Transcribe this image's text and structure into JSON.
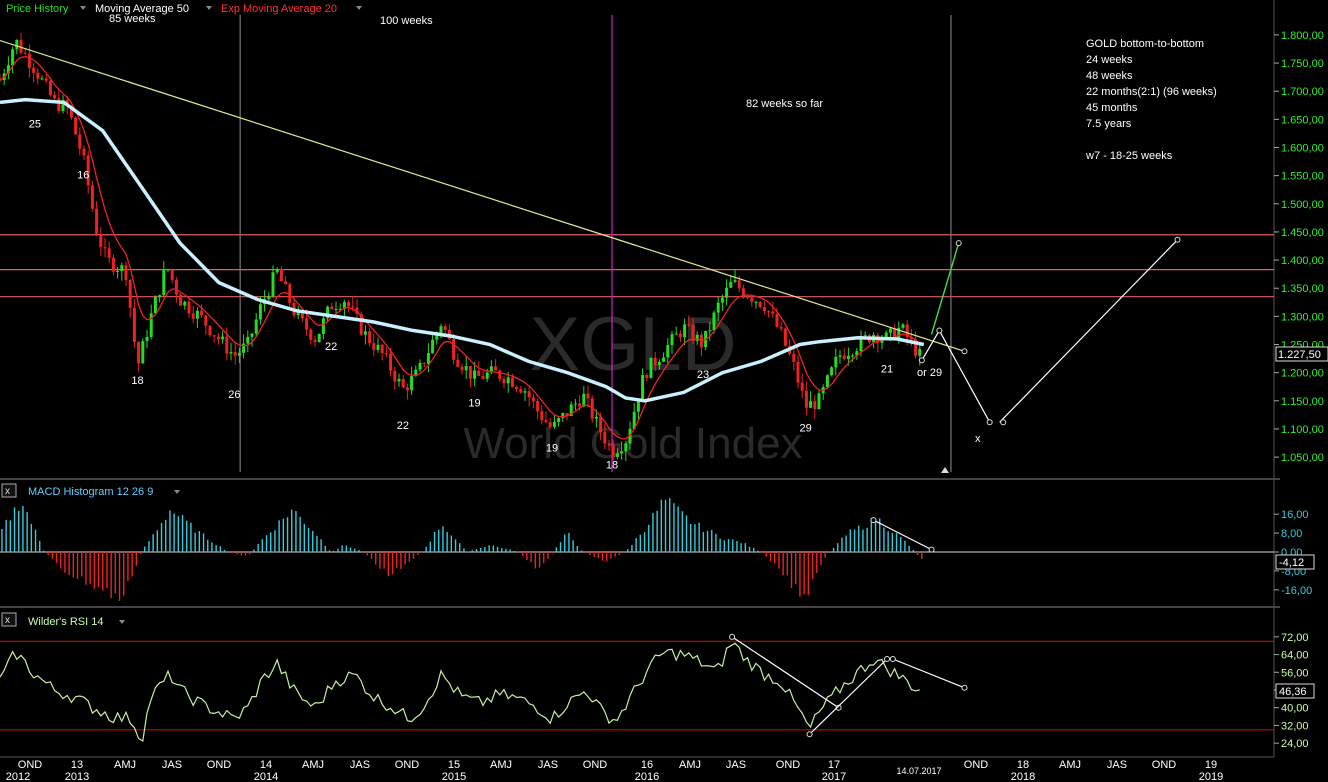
{
  "main": {
    "legend": [
      {
        "label": "Price History",
        "color": "#22dd22"
      },
      {
        "label": "Moving Average 50",
        "color": "#ffffff"
      },
      {
        "label": "Exp Moving Average 20",
        "color": "#ff2a2a"
      }
    ],
    "watermark_symbol": "XGLD",
    "watermark_name": "World Gold Index",
    "annotations": {
      "weeks_85": "85 weeks",
      "weeks_100": "100 weeks",
      "so_far": "82 weeks so far",
      "x_mark": "x",
      "or29": "or 29",
      "date": "14.07.2017"
    },
    "cycle_notes": [
      "GOLD bottom-to-bottom",
      "24 weeks",
      "48 weeks",
      "22 months(2:1) (96 weeks)",
      "45 months",
      "7.5 years",
      "",
      "w7 - 18-25 weeks"
    ],
    "cycle_labels": [
      "25",
      "16",
      "18",
      "26",
      "22",
      "22",
      "19",
      "19",
      "18",
      "23",
      "29",
      "21"
    ],
    "current_price": "1.227,50"
  },
  "macd": {
    "title": "MACD Histogram 12 26 9",
    "current": "-4,12",
    "close_icon": "x"
  },
  "rsi": {
    "title": "Wilder's RSI 14",
    "current": "46,36",
    "close_icon": "x"
  },
  "x_axis": {
    "months": [
      "OND",
      "13",
      "AMJ",
      "JAS",
      "OND",
      "14",
      "AMJ",
      "JAS",
      "OND",
      "15",
      "AMJ",
      "JAS",
      "OND",
      "16",
      "AMJ",
      "JAS",
      "OND",
      "17",
      "",
      "OND",
      "18",
      "AMJ",
      "JAS",
      "OND",
      "19"
    ],
    "years": [
      "2012",
      "2013",
      "2014",
      "2015",
      "2016",
      "2017",
      "2018",
      "2019"
    ]
  },
  "chart_data": [
    {
      "type": "candlestick",
      "title": "World Gold Index",
      "symbol": "XGLD",
      "timeframe": "weekly",
      "x_range": [
        "2012-10",
        "2019-03"
      ],
      "ylim": [
        1020,
        1830
      ],
      "y_ticks": [
        "1.050,00",
        "1.100,00",
        "1.150,00",
        "1.200,00",
        "1.250,00",
        "1.300,00",
        "1.350,00",
        "1.400,00",
        "1.450,00",
        "1.500,00",
        "1.550,00",
        "1.600,00",
        "1.650,00",
        "1.700,00",
        "1.750,00",
        "1.800,00"
      ],
      "last_close": 1227.5,
      "price_path": [
        [
          2012.77,
          1720
        ],
        [
          2012.85,
          1790
        ],
        [
          2012.95,
          1740
        ],
        [
          2013.05,
          1680
        ],
        [
          2013.12,
          1670
        ],
        [
          2013.2,
          1580
        ],
        [
          2013.27,
          1450
        ],
        [
          2013.32,
          1400
        ],
        [
          2013.42,
          1380
        ],
        [
          2013.48,
          1210
        ],
        [
          2013.55,
          1300
        ],
        [
          2013.63,
          1390
        ],
        [
          2013.7,
          1330
        ],
        [
          2013.8,
          1300
        ],
        [
          2013.9,
          1260
        ],
        [
          2013.98,
          1230
        ],
        [
          2014.05,
          1250
        ],
        [
          2014.12,
          1320
        ],
        [
          2014.2,
          1380
        ],
        [
          2014.3,
          1300
        ],
        [
          2014.4,
          1260
        ],
        [
          2014.48,
          1320
        ],
        [
          2014.55,
          1330
        ],
        [
          2014.65,
          1270
        ],
        [
          2014.75,
          1230
        ],
        [
          2014.85,
          1170
        ],
        [
          2014.93,
          1200
        ],
        [
          2015.05,
          1290
        ],
        [
          2015.12,
          1230
        ],
        [
          2015.22,
          1190
        ],
        [
          2015.32,
          1200
        ],
        [
          2015.4,
          1190
        ],
        [
          2015.48,
          1170
        ],
        [
          2015.55,
          1130
        ],
        [
          2015.62,
          1100
        ],
        [
          2015.7,
          1130
        ],
        [
          2015.78,
          1160
        ],
        [
          2015.85,
          1110
        ],
        [
          2015.93,
          1060
        ],
        [
          2016.0,
          1080
        ],
        [
          2016.1,
          1200
        ],
        [
          2016.2,
          1240
        ],
        [
          2016.3,
          1280
        ],
        [
          2016.4,
          1250
        ],
        [
          2016.48,
          1320
        ],
        [
          2016.55,
          1360
        ],
        [
          2016.63,
          1340
        ],
        [
          2016.72,
          1320
        ],
        [
          2016.8,
          1270
        ],
        [
          2016.87,
          1210
        ],
        [
          2016.93,
          1140
        ],
        [
          2017.0,
          1150
        ],
        [
          2017.1,
          1230
        ],
        [
          2017.2,
          1250
        ],
        [
          2017.28,
          1270
        ],
        [
          2017.35,
          1260
        ],
        [
          2017.42,
          1280
        ],
        [
          2017.48,
          1250
        ],
        [
          2017.54,
          1220
        ]
      ],
      "sma50_path": [
        [
          2012.77,
          1680
        ],
        [
          2012.9,
          1685
        ],
        [
          2013.1,
          1680
        ],
        [
          2013.3,
          1630
        ],
        [
          2013.5,
          1530
        ],
        [
          2013.7,
          1430
        ],
        [
          2013.9,
          1360
        ],
        [
          2014.1,
          1330
        ],
        [
          2014.3,
          1310
        ],
        [
          2014.5,
          1300
        ],
        [
          2014.7,
          1290
        ],
        [
          2014.9,
          1275
        ],
        [
          2015.1,
          1265
        ],
        [
          2015.3,
          1250
        ],
        [
          2015.5,
          1220
        ],
        [
          2015.7,
          1200
        ],
        [
          2015.9,
          1175
        ],
        [
          2016.0,
          1155
        ],
        [
          2016.1,
          1150
        ],
        [
          2016.3,
          1165
        ],
        [
          2016.5,
          1200
        ],
        [
          2016.7,
          1220
        ],
        [
          2016.9,
          1250
        ],
        [
          2017.0,
          1255
        ],
        [
          2017.2,
          1262
        ],
        [
          2017.4,
          1260
        ],
        [
          2017.54,
          1250
        ]
      ],
      "horizontal_levels": [
        1445,
        1383,
        1335
      ],
      "cycle_lows": [
        {
          "label": "25",
          "x": 2012.95,
          "y": 1660
        },
        {
          "label": "16",
          "x": 2013.2,
          "y": 1570
        },
        {
          "label": "18",
          "x": 2013.48,
          "y": 1205
        },
        {
          "label": "26",
          "x": 2013.98,
          "y": 1180
        },
        {
          "label": "22",
          "x": 2014.48,
          "y": 1265
        },
        {
          "label": "22",
          "x": 2014.85,
          "y": 1125
        },
        {
          "label": "19",
          "x": 2015.22,
          "y": 1165
        },
        {
          "label": "19",
          "x": 2015.62,
          "y": 1085
        },
        {
          "label": "18",
          "x": 2015.93,
          "y": 1055
        },
        {
          "label": "23",
          "x": 2016.4,
          "y": 1215
        },
        {
          "label": "29",
          "x": 2016.93,
          "y": 1120
        },
        {
          "label": "21",
          "x": 2017.35,
          "y": 1225
        }
      ]
    },
    {
      "type": "bar",
      "title": "MACD Histogram 12 26 9",
      "ylim": [
        -22,
        22
      ],
      "y_ticks": [
        "16,00",
        "8,00",
        "0,00",
        "-8,00",
        "-16,00"
      ],
      "last_value": -4.12,
      "path": [
        [
          2012.77,
          8
        ],
        [
          2012.88,
          22
        ],
        [
          2013.0,
          0
        ],
        [
          2013.1,
          -8
        ],
        [
          2013.25,
          -14
        ],
        [
          2013.4,
          -20
        ],
        [
          2013.5,
          0
        ],
        [
          2013.65,
          18
        ],
        [
          2013.8,
          8
        ],
        [
          2013.95,
          0
        ],
        [
          2014.05,
          -2
        ],
        [
          2014.12,
          5
        ],
        [
          2014.28,
          18
        ],
        [
          2014.4,
          8
        ],
        [
          2014.48,
          0
        ],
        [
          2014.55,
          3
        ],
        [
          2014.65,
          0
        ],
        [
          2014.78,
          -10
        ],
        [
          2014.88,
          -4
        ],
        [
          2014.95,
          0
        ],
        [
          2015.05,
          12
        ],
        [
          2015.18,
          0
        ],
        [
          2015.3,
          3
        ],
        [
          2015.45,
          0
        ],
        [
          2015.55,
          -8
        ],
        [
          2015.7,
          8
        ],
        [
          2015.78,
          0
        ],
        [
          2015.9,
          -4
        ],
        [
          2016.0,
          0
        ],
        [
          2016.1,
          10
        ],
        [
          2016.2,
          22
        ],
        [
          2016.35,
          12
        ],
        [
          2016.5,
          6
        ],
        [
          2016.6,
          4
        ],
        [
          2016.7,
          0
        ],
        [
          2016.8,
          -8
        ],
        [
          2016.92,
          -20
        ],
        [
          2017.0,
          -6
        ],
        [
          2017.05,
          0
        ],
        [
          2017.15,
          8
        ],
        [
          2017.3,
          14
        ],
        [
          2017.45,
          4
        ],
        [
          2017.54,
          -4.12
        ]
      ]
    },
    {
      "type": "line",
      "title": "Wilder's RSI 14",
      "ylim": [
        20,
        76
      ],
      "y_ticks": [
        "72,00",
        "64,00",
        "56,00",
        "48,00",
        "40,00",
        "32,00",
        "24,00"
      ],
      "last_value": 46.36,
      "levels": [
        70,
        30
      ],
      "path": [
        [
          2012.77,
          52
        ],
        [
          2012.85,
          65
        ],
        [
          2012.95,
          55
        ],
        [
          2013.05,
          48
        ],
        [
          2013.15,
          45
        ],
        [
          2013.25,
          40
        ],
        [
          2013.35,
          36
        ],
        [
          2013.45,
          35
        ],
        [
          2013.5,
          25
        ],
        [
          2013.55,
          45
        ],
        [
          2013.65,
          55
        ],
        [
          2013.7,
          48
        ],
        [
          2013.8,
          42
        ],
        [
          2013.9,
          38
        ],
        [
          2013.98,
          35
        ],
        [
          2014.05,
          40
        ],
        [
          2014.12,
          52
        ],
        [
          2014.2,
          60
        ],
        [
          2014.3,
          46
        ],
        [
          2014.4,
          40
        ],
        [
          2014.5,
          52
        ],
        [
          2014.6,
          55
        ],
        [
          2014.7,
          45
        ],
        [
          2014.8,
          40
        ],
        [
          2014.88,
          35
        ],
        [
          2014.95,
          40
        ],
        [
          2015.05,
          55
        ],
        [
          2015.15,
          45
        ],
        [
          2015.25,
          42
        ],
        [
          2015.35,
          46
        ],
        [
          2015.45,
          44
        ],
        [
          2015.55,
          40
        ],
        [
          2015.62,
          35
        ],
        [
          2015.7,
          42
        ],
        [
          2015.8,
          48
        ],
        [
          2015.88,
          38
        ],
        [
          2015.95,
          34
        ],
        [
          2016.05,
          48
        ],
        [
          2016.12,
          58
        ],
        [
          2016.2,
          65
        ],
        [
          2016.3,
          64
        ],
        [
          2016.4,
          60
        ],
        [
          2016.47,
          56
        ],
        [
          2016.55,
          70
        ],
        [
          2016.62,
          62
        ],
        [
          2016.72,
          55
        ],
        [
          2016.8,
          52
        ],
        [
          2016.9,
          38
        ],
        [
          2016.95,
          30
        ],
        [
          2017.0,
          38
        ],
        [
          2017.1,
          48
        ],
        [
          2017.2,
          56
        ],
        [
          2017.28,
          62
        ],
        [
          2017.35,
          58
        ],
        [
          2017.45,
          52
        ],
        [
          2017.54,
          46.36
        ]
      ]
    }
  ]
}
